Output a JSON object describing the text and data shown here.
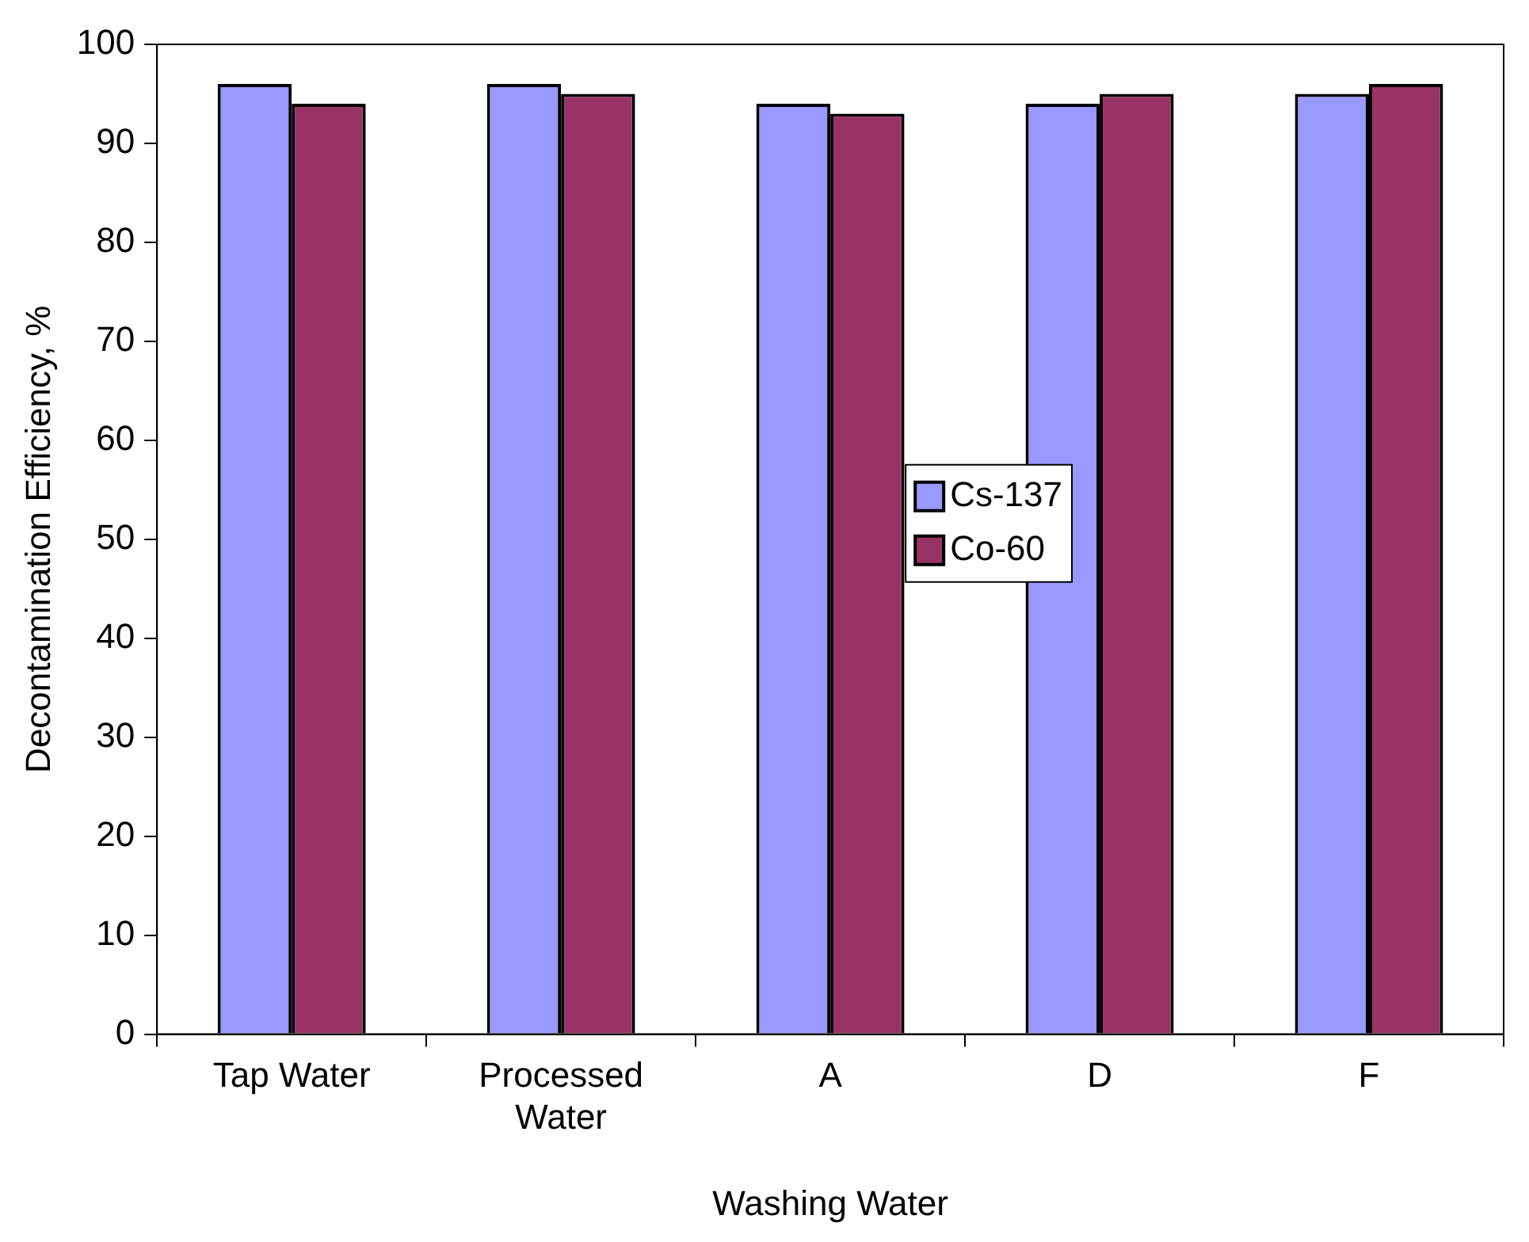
{
  "chart_data": {
    "type": "bar",
    "xlabel": "Washing Water",
    "ylabel": "Decontamination Efficiency, %",
    "categories": [
      "Tap Water",
      "Processed Water",
      "A",
      "D",
      "F"
    ],
    "series": [
      {
        "name": "Cs-137",
        "color": "#9999ff",
        "values": [
          96,
          96,
          94,
          94,
          95
        ]
      },
      {
        "name": "Co-60",
        "color": "#993366",
        "values": [
          94,
          95,
          93,
          95,
          96
        ]
      }
    ],
    "ylim": [
      0,
      100
    ],
    "yticks": [
      0,
      10,
      20,
      30,
      40,
      50,
      60,
      70,
      80,
      90,
      100
    ],
    "grid": false,
    "legend": "center"
  }
}
